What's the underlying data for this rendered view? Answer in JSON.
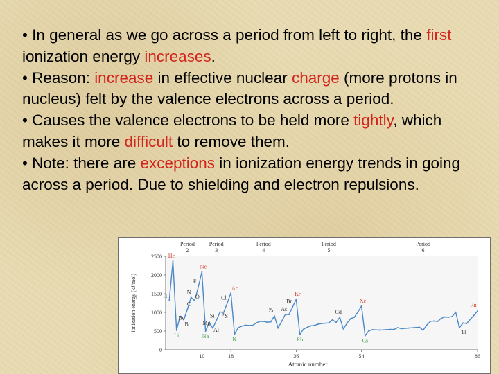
{
  "slide": {
    "bullets": [
      {
        "segments": [
          {
            "text": "• In general as we go across a period from left to right, the ",
            "hl": false
          },
          {
            "text": "first",
            "hl": true
          },
          {
            "text": " ionization energy ",
            "hl": false
          },
          {
            "text": "increases",
            "hl": true
          },
          {
            "text": ".",
            "hl": false
          }
        ]
      },
      {
        "segments": [
          {
            "text": "• Reason:  ",
            "hl": false
          },
          {
            "text": "increase",
            "hl": true
          },
          {
            "text": " in effective nuclear ",
            "hl": false
          },
          {
            "text": "charge",
            "hl": true
          },
          {
            "text": " (more protons in nucleus) felt by the valence electrons across a period.",
            "hl": false
          }
        ]
      },
      {
        "segments": [
          {
            "text": "• Causes the valence electrons to be held more ",
            "hl": false
          },
          {
            "text": "tightly",
            "hl": true
          },
          {
            "text": ", which makes it more ",
            "hl": false
          },
          {
            "text": "difficult",
            "hl": true
          },
          {
            "text": " to remove them.",
            "hl": false
          }
        ]
      },
      {
        "segments": [
          {
            "text": "• Note:  there are ",
            "hl": false
          },
          {
            "text": "exceptions",
            "hl": true
          },
          {
            "text": " in ionization energy trends in going across a period.  Due to shielding and electron repulsions.",
            "hl": false
          }
        ]
      }
    ]
  },
  "colors": {
    "highlight": "#d2241c",
    "line": "#4a88c8",
    "noble_gas_label": "#d23a2a",
    "alkali_label": "#2f9a3a",
    "other_label": "#333333",
    "background": "#e9dcb4"
  },
  "chart_data": {
    "type": "line",
    "xlabel": "Atomic number",
    "ylabel": "Ionization energy (kJ/mol)",
    "ylim": [
      0,
      2500
    ],
    "xlim": [
      0,
      86
    ],
    "y_ticks": [
      0,
      500,
      1000,
      1500,
      2000,
      2500
    ],
    "x_ticks": [
      10,
      18,
      36,
      54,
      86
    ],
    "periods": [
      {
        "label": "Period",
        "number": "2",
        "z": 6
      },
      {
        "label": "Period",
        "number": "3",
        "z": 14
      },
      {
        "label": "Period",
        "number": "4",
        "z": 27
      },
      {
        "label": "Period",
        "number": "5",
        "z": 45
      },
      {
        "label": "Period",
        "number": "6",
        "z": 71
      }
    ],
    "series": [
      {
        "x": [
          1,
          2,
          3,
          4,
          5,
          6,
          7,
          8,
          9,
          10,
          11,
          12,
          13,
          14,
          15,
          16,
          17,
          18,
          19,
          20,
          21,
          22,
          23,
          24,
          25,
          26,
          27,
          28,
          29,
          30,
          31,
          32,
          33,
          34,
          35,
          36,
          37,
          38,
          39,
          40,
          41,
          42,
          43,
          44,
          45,
          46,
          47,
          48,
          49,
          50,
          51,
          52,
          53,
          54,
          55,
          56,
          57,
          58,
          59,
          60,
          61,
          62,
          63,
          64,
          65,
          66,
          67,
          68,
          69,
          70,
          71,
          72,
          73,
          74,
          75,
          76,
          77,
          78,
          79,
          80,
          81,
          82,
          83,
          84,
          85,
          86
        ],
        "values": [
          1312,
          2372,
          520,
          900,
          801,
          1086,
          1402,
          1314,
          1681,
          2081,
          496,
          738,
          578,
          787,
          1012,
          1000,
          1251,
          1521,
          419,
          590,
          633,
          659,
          651,
          653,
          717,
          762,
          760,
          737,
          746,
          906,
          579,
          762,
          947,
          941,
          1140,
          1351,
          403,
          550,
          600,
          640,
          652,
          684,
          702,
          710,
          720,
          804,
          731,
          868,
          558,
          709,
          834,
          869,
          1008,
          1170,
          376,
          503,
          538,
          534,
          527,
          533,
          540,
          545,
          547,
          593,
          566,
          573,
          581,
          589,
          597,
          603,
          524,
          659,
          761,
          770,
          760,
          840,
          880,
          870,
          890,
          1007,
          589,
          716,
          703,
          812,
          920,
          1037
        ]
      }
    ],
    "element_labels": [
      {
        "symbol": "He",
        "z": 2,
        "group": "noble"
      },
      {
        "symbol": "Ne",
        "z": 10,
        "group": "noble"
      },
      {
        "symbol": "Ar",
        "z": 18,
        "group": "noble"
      },
      {
        "symbol": "Kr",
        "z": 36,
        "group": "noble"
      },
      {
        "symbol": "Xe",
        "z": 54,
        "group": "noble"
      },
      {
        "symbol": "Rn",
        "z": 86,
        "group": "noble"
      },
      {
        "symbol": "Li",
        "z": 3,
        "group": "alkali"
      },
      {
        "symbol": "Na",
        "z": 11,
        "group": "alkali"
      },
      {
        "symbol": "K",
        "z": 19,
        "group": "alkali"
      },
      {
        "symbol": "Rb",
        "z": 37,
        "group": "alkali"
      },
      {
        "symbol": "Cs",
        "z": 55,
        "group": "alkali"
      },
      {
        "symbol": "H",
        "z": 1,
        "group": "other"
      },
      {
        "symbol": "Be",
        "z": 4,
        "group": "other"
      },
      {
        "symbol": "B",
        "z": 5,
        "group": "other"
      },
      {
        "symbol": "C",
        "z": 6,
        "group": "other"
      },
      {
        "symbol": "N",
        "z": 7,
        "group": "other"
      },
      {
        "symbol": "O",
        "z": 8,
        "group": "other"
      },
      {
        "symbol": "F",
        "z": 9,
        "group": "other"
      },
      {
        "symbol": "Mg",
        "z": 12,
        "group": "other"
      },
      {
        "symbol": "Al",
        "z": 13,
        "group": "other"
      },
      {
        "symbol": "Si",
        "z": 14,
        "group": "other"
      },
      {
        "symbol": "P",
        "z": 15,
        "group": "other"
      },
      {
        "symbol": "S",
        "z": 16,
        "group": "other"
      },
      {
        "symbol": "Cl",
        "z": 17,
        "group": "other"
      },
      {
        "symbol": "Zn",
        "z": 30,
        "group": "other"
      },
      {
        "symbol": "As",
        "z": 33,
        "group": "other"
      },
      {
        "symbol": "Br",
        "z": 35,
        "group": "other"
      },
      {
        "symbol": "Cd",
        "z": 48,
        "group": "other"
      },
      {
        "symbol": "Tl",
        "z": 81,
        "group": "other"
      }
    ]
  }
}
